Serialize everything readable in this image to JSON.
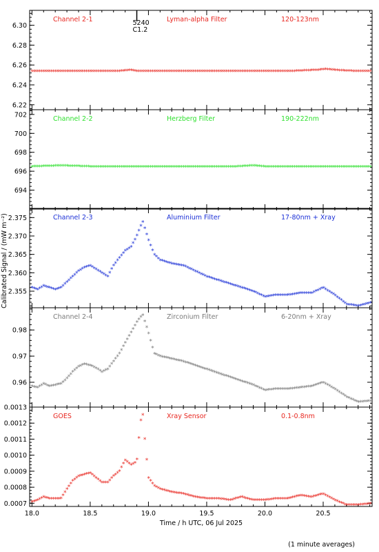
{
  "chart_data": {
    "type": "scatter",
    "xlabel": "Time / h UTC, 06 Jul 2025",
    "ylabel": "Calibrated Signal / (mW m⁻²)",
    "footnote": "(1 minute averages)",
    "x_range": [
      17.98,
      20.92
    ],
    "x_ticks": [
      18.0,
      18.5,
      19.0,
      19.5,
      20.0,
      20.5
    ],
    "x_tick_labels": [
      "18.0",
      "18.5",
      "19.0",
      "19.5",
      "20.0",
      "20.5"
    ],
    "annotation": {
      "text": [
        "5240",
        "C1.2"
      ],
      "x": 18.9
    },
    "panels": [
      {
        "channel": "Channel 2-1",
        "filter": "Lyman-alpha Filter",
        "band": "120-123nm",
        "color": "#e8261f",
        "ylim": [
          6.215,
          6.315
        ],
        "y_ticks": [
          6.22,
          6.24,
          6.26,
          6.28,
          6.3
        ],
        "y_tick_labels": [
          "6.22",
          "6.24",
          "6.26",
          "6.28",
          "6.30"
        ],
        "series": {
          "x": [
            18.0,
            18.25,
            18.5,
            18.75,
            18.85,
            18.9,
            19.0,
            19.25,
            19.5,
            19.75,
            20.0,
            20.25,
            20.45,
            20.52,
            20.6,
            20.75,
            20.92
          ],
          "y": [
            6.254,
            6.254,
            6.254,
            6.254,
            6.255,
            6.254,
            6.254,
            6.254,
            6.254,
            6.254,
            6.254,
            6.254,
            6.255,
            6.256,
            6.255,
            6.254,
            6.254
          ]
        }
      },
      {
        "channel": "Channel 2-2",
        "filter": "Herzberg Filter",
        "band": "190-222nm",
        "color": "#2de02d",
        "ylim": [
          692.0,
          702.5
        ],
        "y_ticks": [
          694,
          696,
          698,
          700,
          702
        ],
        "y_tick_labels": [
          "694",
          "696",
          "698",
          "700",
          "702"
        ],
        "series": {
          "x": [
            18.0,
            18.25,
            18.5,
            18.75,
            19.0,
            19.25,
            19.5,
            19.75,
            19.9,
            20.0,
            20.25,
            20.5,
            20.75,
            20.92
          ],
          "y": [
            696.5,
            696.6,
            696.5,
            696.5,
            696.5,
            696.5,
            696.5,
            696.5,
            696.6,
            696.5,
            696.5,
            696.5,
            696.5,
            696.5
          ]
        }
      },
      {
        "channel": "Channel 2-3",
        "filter": "Aluminium Filter",
        "band": "17-80nm + Xray",
        "color": "#1a2fd6",
        "ylim": [
          2.3505,
          2.3775
        ],
        "y_ticks": [
          2.355,
          2.36,
          2.365,
          2.37,
          2.375
        ],
        "y_tick_labels": [
          "2.355",
          "2.360",
          "2.365",
          "2.370",
          "2.375"
        ],
        "series": {
          "x": [
            18.0,
            18.05,
            18.1,
            18.15,
            18.2,
            18.25,
            18.3,
            18.35,
            18.4,
            18.45,
            18.5,
            18.55,
            18.6,
            18.65,
            18.7,
            18.75,
            18.8,
            18.85,
            18.9,
            18.95,
            19.0,
            19.05,
            19.1,
            19.2,
            19.3,
            19.4,
            19.5,
            19.6,
            19.7,
            19.8,
            19.9,
            20.0,
            20.1,
            20.2,
            20.3,
            20.4,
            20.5,
            20.6,
            20.7,
            20.8,
            20.92
          ],
          "y": [
            2.356,
            2.3555,
            2.3565,
            2.356,
            2.3555,
            2.356,
            2.3575,
            2.359,
            2.3605,
            2.3615,
            2.362,
            2.361,
            2.36,
            2.359,
            2.362,
            2.364,
            2.366,
            2.367,
            2.37,
            2.374,
            2.369,
            2.365,
            2.3635,
            2.3625,
            2.362,
            2.3605,
            2.359,
            2.358,
            2.357,
            2.356,
            2.355,
            2.3535,
            2.354,
            2.354,
            2.3545,
            2.3545,
            2.356,
            2.354,
            2.3515,
            2.351,
            2.352
          ]
        }
      },
      {
        "channel": "Channel 2-4",
        "filter": "Zirconium Filter",
        "band": "6-20nm + Xray",
        "color": "#7a7a7a",
        "ylim": [
          0.9505,
          0.9885
        ],
        "y_ticks": [
          0.96,
          0.97,
          0.98
        ],
        "y_tick_labels": [
          "0.96",
          "0.97",
          "0.98"
        ],
        "series": {
          "x": [
            18.0,
            18.05,
            18.1,
            18.15,
            18.2,
            18.25,
            18.3,
            18.35,
            18.4,
            18.45,
            18.5,
            18.55,
            18.6,
            18.65,
            18.7,
            18.75,
            18.8,
            18.85,
            18.9,
            18.95,
            19.0,
            19.05,
            19.1,
            19.2,
            19.3,
            19.4,
            19.5,
            19.6,
            19.7,
            19.8,
            19.9,
            20.0,
            20.1,
            20.2,
            20.3,
            20.4,
            20.5,
            20.6,
            20.7,
            20.8,
            20.92
          ],
          "y": [
            0.9585,
            0.958,
            0.9595,
            0.9585,
            0.959,
            0.9595,
            0.9615,
            0.964,
            0.966,
            0.967,
            0.9665,
            0.9655,
            0.964,
            0.965,
            0.968,
            0.971,
            0.975,
            0.979,
            0.983,
            0.986,
            0.979,
            0.971,
            0.97,
            0.969,
            0.968,
            0.9665,
            0.965,
            0.9635,
            0.962,
            0.9605,
            0.959,
            0.957,
            0.9575,
            0.9575,
            0.958,
            0.9585,
            0.96,
            0.9575,
            0.9545,
            0.9525,
            0.953
          ]
        }
      },
      {
        "channel": "GOES",
        "filter": "Xray Sensor",
        "band": "0.1-0.8nm",
        "color": "#e8261f",
        "ylim": [
          0.00068,
          0.0013
        ],
        "y_ticks": [
          0.0007,
          0.0008,
          0.0009,
          0.001,
          0.0011,
          0.0012,
          0.0013
        ],
        "y_tick_labels": [
          "0.0007",
          "0.0008",
          "0.0009",
          "0.0010",
          "0.0011",
          "0.0012",
          "0.0013"
        ],
        "series": {
          "x": [
            18.0,
            18.05,
            18.1,
            18.15,
            18.2,
            18.25,
            18.3,
            18.35,
            18.4,
            18.45,
            18.5,
            18.55,
            18.6,
            18.65,
            18.7,
            18.75,
            18.8,
            18.85,
            18.9,
            18.93,
            18.95,
            18.97,
            19.0,
            19.05,
            19.1,
            19.2,
            19.3,
            19.4,
            19.5,
            19.6,
            19.7,
            19.8,
            19.9,
            20.0,
            20.1,
            20.2,
            20.3,
            20.4,
            20.5,
            20.6,
            20.7,
            20.8,
            20.92
          ],
          "y": [
            0.00071,
            0.00072,
            0.00074,
            0.00073,
            0.00073,
            0.00073,
            0.00079,
            0.00084,
            0.00087,
            0.00088,
            0.00089,
            0.00086,
            0.00083,
            0.00083,
            0.00087,
            0.0009,
            0.00097,
            0.00094,
            0.00096,
            0.0012,
            0.00127,
            0.00109,
            0.00086,
            0.00081,
            0.00079,
            0.00077,
            0.00076,
            0.00074,
            0.00073,
            0.00073,
            0.00072,
            0.00074,
            0.00072,
            0.00072,
            0.00073,
            0.00073,
            0.00075,
            0.00074,
            0.00076,
            0.00072,
            0.00069,
            0.00069,
            0.0007
          ]
        }
      }
    ]
  }
}
